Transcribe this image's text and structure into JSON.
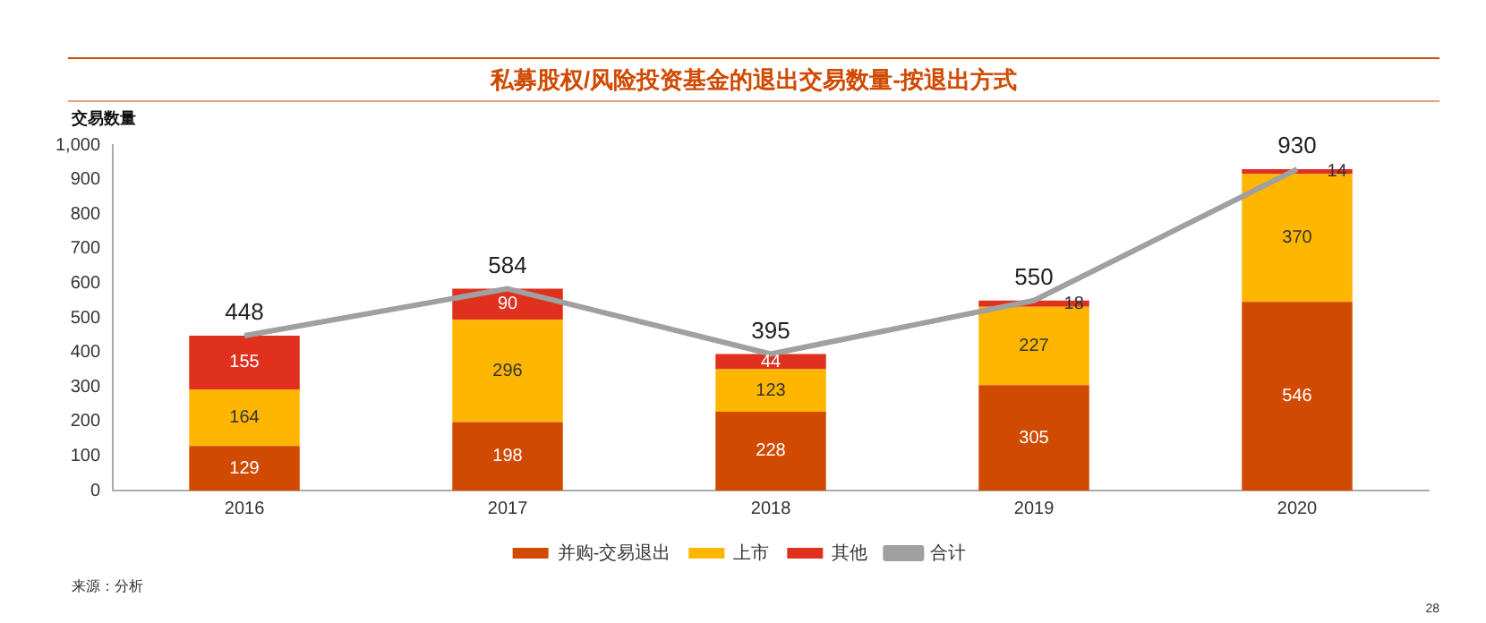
{
  "chart_data": {
    "type": "bar",
    "title": "私募股权/风险投资基金的退出交易数量-按退出方式",
    "ylabel": "交易数量",
    "categories": [
      "2016",
      "2017",
      "2018",
      "2019",
      "2020"
    ],
    "stacked": true,
    "series": [
      {
        "name": "并购-交易退出",
        "color": "#d04a02",
        "values": [
          129,
          198,
          228,
          305,
          546
        ]
      },
      {
        "name": "上市",
        "color": "#ffb600",
        "values": [
          164,
          296,
          123,
          227,
          370
        ]
      },
      {
        "name": "其他",
        "color": "#e0301e",
        "values": [
          155,
          90,
          44,
          18,
          14
        ]
      },
      {
        "name": "合计",
        "type": "line",
        "color": "#a0a0a0",
        "values": [
          448,
          584,
          395,
          550,
          930
        ]
      }
    ],
    "ylim": [
      0,
      1000
    ],
    "yticks": [
      0,
      100,
      200,
      300,
      400,
      500,
      600,
      700,
      800,
      900,
      {
        "value": 1000,
        "label": "1,000"
      }
    ],
    "grid": false,
    "legend": "bottom",
    "marker": "none",
    "data_labels": true,
    "annotations": [
      "来源：分析",
      "28"
    ]
  }
}
